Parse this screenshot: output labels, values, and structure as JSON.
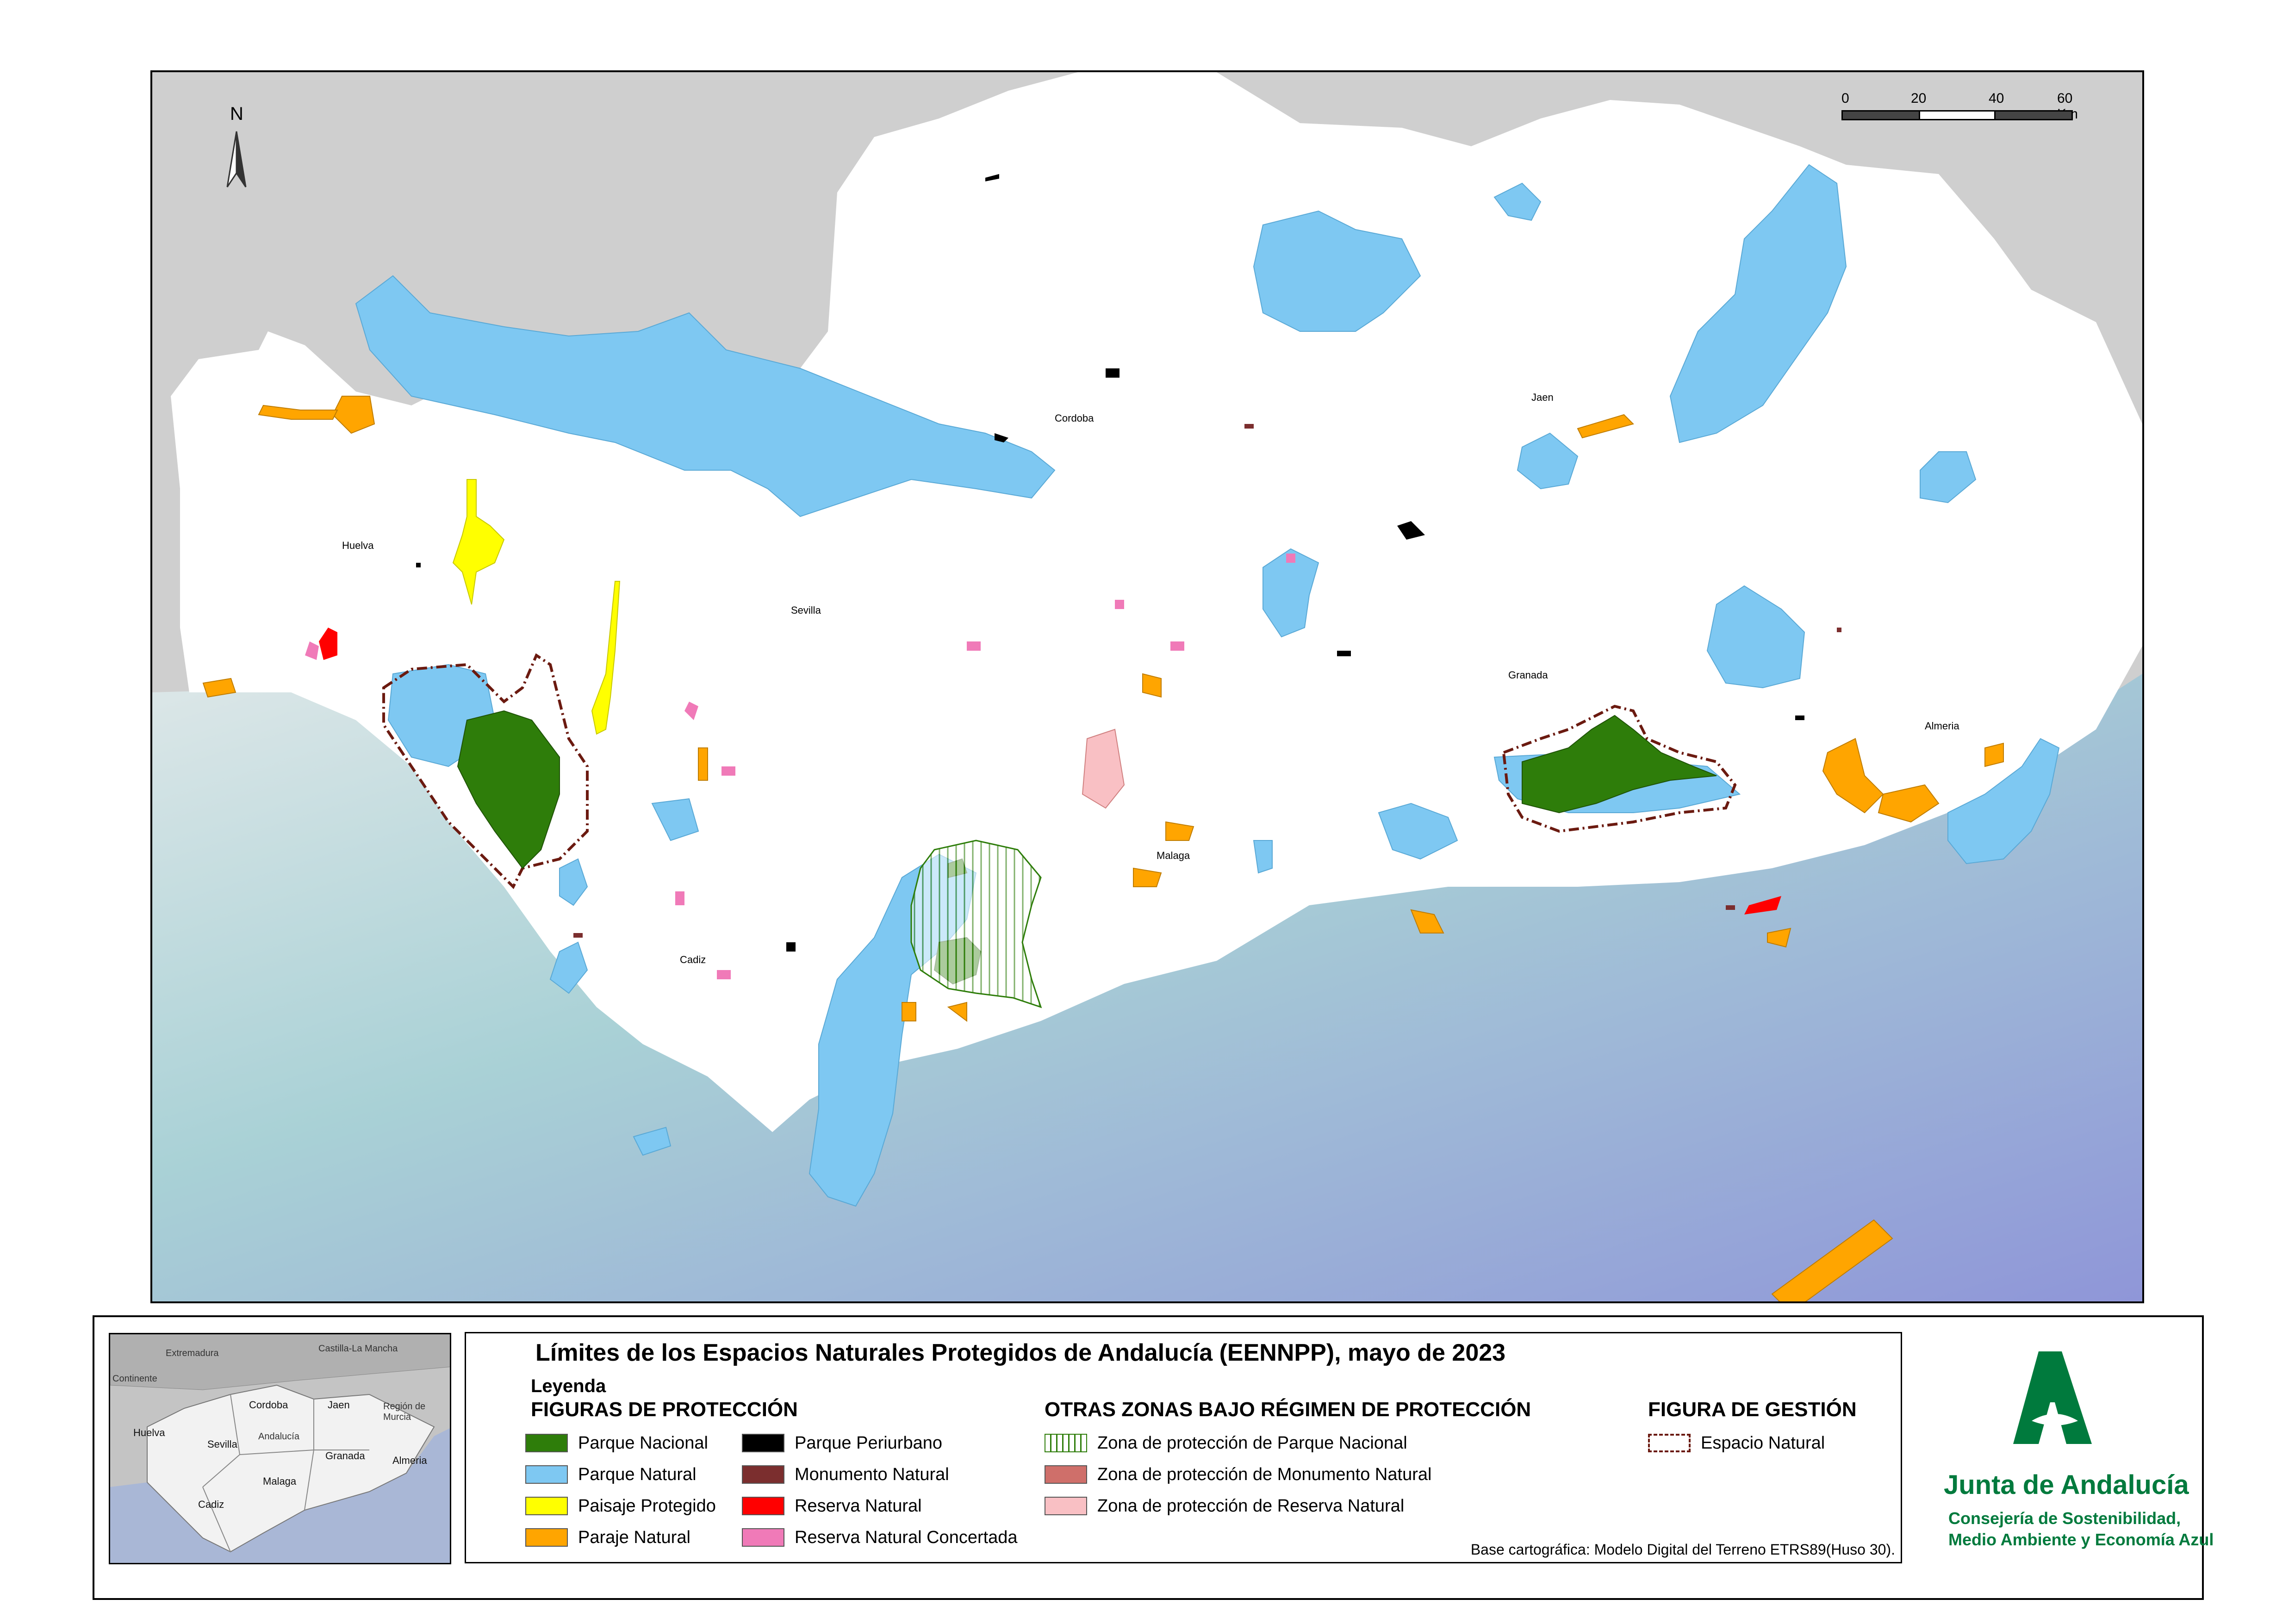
{
  "map": {
    "north_label": "N",
    "scale": {
      "ticks": [
        "0",
        "20",
        "40",
        "60 Km"
      ]
    },
    "cities": [
      {
        "id": "cordoba",
        "label": "Cordoba"
      },
      {
        "id": "jaen",
        "label": "Jaen"
      },
      {
        "id": "huelva",
        "label": "Huelva"
      },
      {
        "id": "sevilla",
        "label": "Sevilla"
      },
      {
        "id": "granada",
        "label": "Granada"
      },
      {
        "id": "almeria",
        "label": "Almeria"
      },
      {
        "id": "malaga",
        "label": "Malaga"
      },
      {
        "id": "cadiz",
        "label": "Cadiz"
      }
    ],
    "colors": {
      "outside_land": "#cfcfcf",
      "andalucia": "#ffffff",
      "sea_light": "#d7e3e6",
      "sea_deep": "#8f96d8",
      "parque_nacional": "#2e7d0a",
      "parque_natural": "#7ec8f2",
      "paisaje_protegido": "#ffff00",
      "paraje_natural": "#ffa500",
      "parque_periurbano": "#000000",
      "monumento_natural": "#7b2e2e",
      "reserva_natural": "#ff0000",
      "reserva_natural_concertada": "#f07ab8",
      "espacio_natural_outline": "#6b1a10"
    }
  },
  "inset": {
    "labels": {
      "extremadura": "Extremadura",
      "castilla": "Castilla-La Mancha",
      "continente": "Continente",
      "cordoba": "Cordoba",
      "jaen": "Jaen",
      "murcia": "Región de Murcia",
      "huelva": "Huelva",
      "sevilla": "Sevilla",
      "andalucia": "Andalucía",
      "granada": "Granada",
      "almeria": "Almeria",
      "malaga": "Malaga",
      "cadiz": "Cadiz"
    }
  },
  "legend": {
    "title": "Límites de los Espacios Naturales Protegidos de Andalucía (EENNPP), mayo de 2023",
    "heading": "Leyenda",
    "figuras_title": "FIGURAS DE PROTECCIÓN",
    "figuras": [
      {
        "label": "Parque Nacional",
        "color": "#2e7d0a"
      },
      {
        "label": "Parque Natural",
        "color": "#7ec8f2"
      },
      {
        "label": "Paisaje Protegido",
        "color": "#ffff00"
      },
      {
        "label": "Paraje Natural",
        "color": "#ffa500"
      },
      {
        "label": "Parque Periurbano",
        "color": "#000000"
      },
      {
        "label": "Monumento Natural",
        "color": "#7b2e2e"
      },
      {
        "label": "Reserva Natural",
        "color": "#ff0000"
      },
      {
        "label": "Reserva Natural Concertada",
        "color": "#f07ab8"
      }
    ],
    "otras_title": "OTRAS ZONAS BAJO RÉGIMEN DE PROTECCIÓN",
    "otras": [
      {
        "label": "Zona de protección de Parque Nacional",
        "color": "#2e7d0a"
      },
      {
        "label": "Zona de protección de Monumento Natural",
        "color": "#cf6f6a"
      },
      {
        "label": "Zona de protección de Reserva Natural",
        "color": "#f9c0c4"
      }
    ],
    "gestion_title": "FIGURA DE GESTIÓN",
    "gestion": [
      {
        "label": "Espacio Natural",
        "color": "#6b1a10"
      }
    ],
    "basemap_note": "Base cartográfica: Modelo Digital del Terreno ETRS89(Huso 30)."
  },
  "logo": {
    "name": "Junta de Andalucía",
    "sub1": "Consejería de Sostenibilidad,",
    "sub2": "Medio Ambiente y Economía Azul"
  }
}
